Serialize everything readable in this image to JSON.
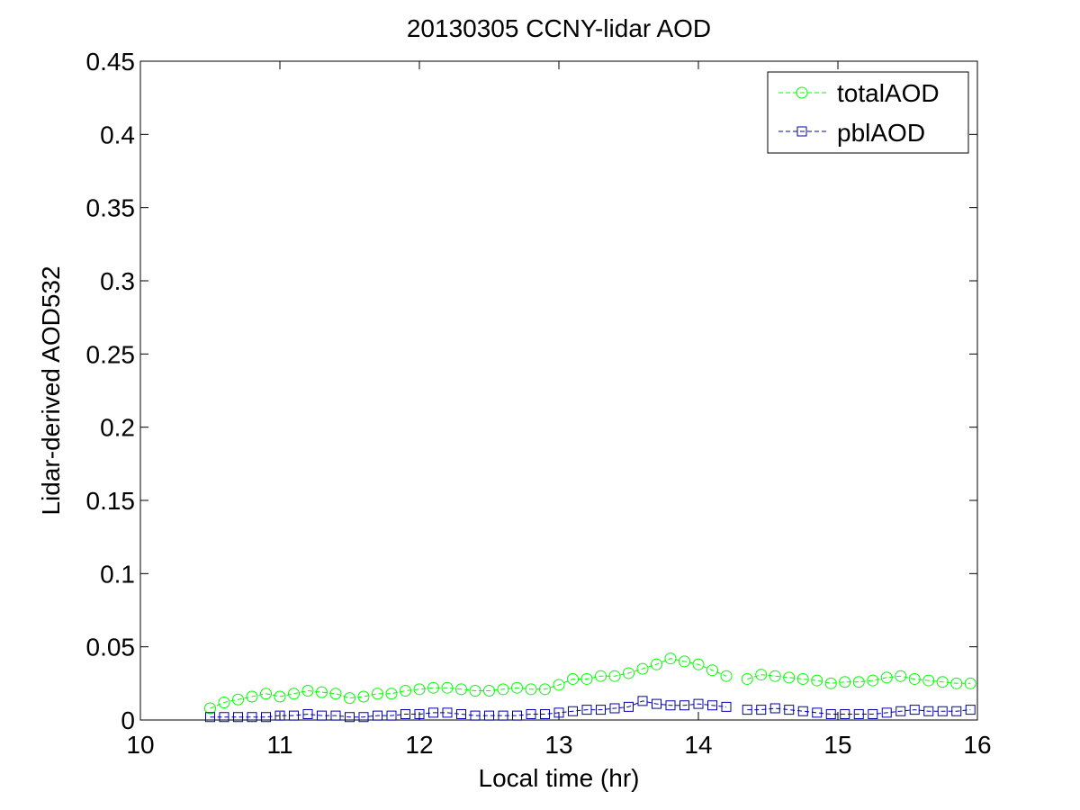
{
  "chart_data": {
    "type": "line",
    "title": "20130305 CCNY-lidar AOD",
    "xlabel": "Local time (hr)",
    "ylabel": "Lidar-derived AOD532",
    "xlim": [
      10,
      16
    ],
    "ylim": [
      0,
      0.45
    ],
    "xticks": [
      "10",
      "11",
      "12",
      "13",
      "14",
      "15",
      "16"
    ],
    "yticks": [
      "0",
      "0.05",
      "0.1",
      "0.15",
      "0.2",
      "0.25",
      "0.3",
      "0.35",
      "0.4",
      "0.45"
    ],
    "grid": false,
    "legend_position": "top-right",
    "gap": [
      14.27,
      14.33
    ],
    "series": [
      {
        "name": "totalAOD",
        "color": "#00ff00",
        "marker": "circle",
        "linestyle": "dashed",
        "x": [
          10.5,
          10.6,
          10.7,
          10.8,
          10.9,
          11.0,
          11.1,
          11.2,
          11.3,
          11.4,
          11.5,
          11.6,
          11.7,
          11.8,
          11.9,
          12.0,
          12.1,
          12.2,
          12.3,
          12.4,
          12.5,
          12.6,
          12.7,
          12.8,
          12.9,
          13.0,
          13.1,
          13.2,
          13.3,
          13.4,
          13.5,
          13.6,
          13.7,
          13.8,
          13.9,
          14.0,
          14.1,
          14.2,
          14.35,
          14.45,
          14.55,
          14.65,
          14.75,
          14.85,
          14.95,
          15.05,
          15.15,
          15.25,
          15.35,
          15.45,
          15.55,
          15.65,
          15.75,
          15.85,
          15.95
        ],
        "y": [
          0.008,
          0.012,
          0.014,
          0.016,
          0.018,
          0.016,
          0.018,
          0.02,
          0.019,
          0.018,
          0.015,
          0.016,
          0.018,
          0.018,
          0.02,
          0.021,
          0.022,
          0.022,
          0.021,
          0.02,
          0.02,
          0.021,
          0.022,
          0.021,
          0.021,
          0.024,
          0.028,
          0.028,
          0.03,
          0.03,
          0.032,
          0.035,
          0.038,
          0.042,
          0.04,
          0.038,
          0.034,
          0.03,
          0.028,
          0.031,
          0.03,
          0.029,
          0.028,
          0.027,
          0.025,
          0.026,
          0.026,
          0.027,
          0.029,
          0.03,
          0.028,
          0.027,
          0.026,
          0.025,
          0.025
        ]
      },
      {
        "name": "pblAOD",
        "color": "#0000aa",
        "marker": "square",
        "linestyle": "dashed",
        "x": [
          10.5,
          10.6,
          10.7,
          10.8,
          10.9,
          11.0,
          11.1,
          11.2,
          11.3,
          11.4,
          11.5,
          11.6,
          11.7,
          11.8,
          11.9,
          12.0,
          12.1,
          12.2,
          12.3,
          12.4,
          12.5,
          12.6,
          12.7,
          12.8,
          12.9,
          13.0,
          13.1,
          13.2,
          13.3,
          13.4,
          13.5,
          13.6,
          13.7,
          13.8,
          13.9,
          14.0,
          14.1,
          14.2,
          14.35,
          14.45,
          14.55,
          14.65,
          14.75,
          14.85,
          14.95,
          15.05,
          15.15,
          15.25,
          15.35,
          15.45,
          15.55,
          15.65,
          15.75,
          15.85,
          15.95
        ],
        "y": [
          0.002,
          0.002,
          0.002,
          0.002,
          0.002,
          0.003,
          0.003,
          0.004,
          0.003,
          0.003,
          0.002,
          0.002,
          0.003,
          0.003,
          0.004,
          0.004,
          0.005,
          0.005,
          0.004,
          0.003,
          0.003,
          0.003,
          0.003,
          0.004,
          0.004,
          0.005,
          0.006,
          0.007,
          0.007,
          0.008,
          0.009,
          0.013,
          0.011,
          0.01,
          0.01,
          0.011,
          0.01,
          0.009,
          0.007,
          0.007,
          0.008,
          0.007,
          0.006,
          0.005,
          0.004,
          0.004,
          0.004,
          0.004,
          0.005,
          0.006,
          0.007,
          0.006,
          0.006,
          0.006,
          0.007
        ]
      }
    ]
  }
}
